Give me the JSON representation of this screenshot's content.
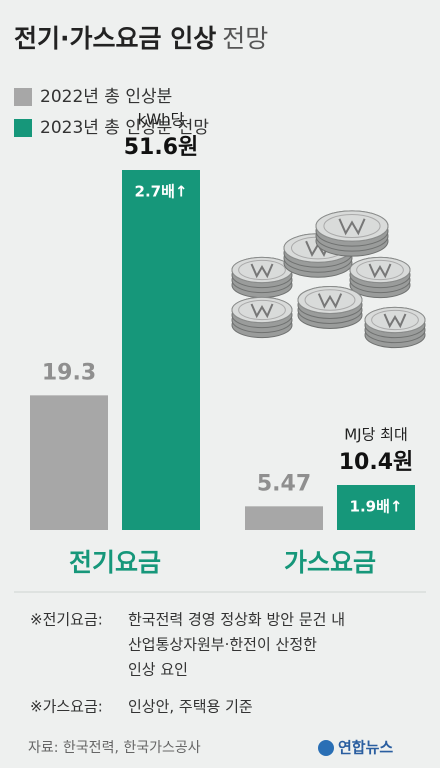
{
  "chart_data": {
    "type": "bar",
    "title": "전기·가스요금 인상",
    "title_suffix": "전망",
    "categories": [
      "전기요금",
      "가스요금"
    ],
    "series": [
      {
        "name": "2022년 총 인상분",
        "color": "#a7a7a7",
        "values": [
          19.3,
          5.47
        ]
      },
      {
        "name": "2023년 총 인상분 전망",
        "color": "#16977a",
        "values": [
          51.6,
          10.4
        ],
        "value_labels": [
          "51.6원",
          "10.4원"
        ]
      }
    ],
    "units": [
      "kWh당",
      "MJ당 최대"
    ],
    "ratios": [
      "2.7배↑",
      "1.9배↑"
    ],
    "notes": [
      {
        "label": "※전기요금:",
        "lines": [
          "한국전력 경영 정상화 방안 문건 내",
          "산업통상자원부·한전이 산정한",
          "인상 요인"
        ]
      },
      {
        "label": "※가스요금:",
        "lines": [
          "인상안, 주택용 기준"
        ]
      }
    ],
    "source": "자료: 한국전력, 한국가스공사",
    "logo": "연합뉴스"
  }
}
